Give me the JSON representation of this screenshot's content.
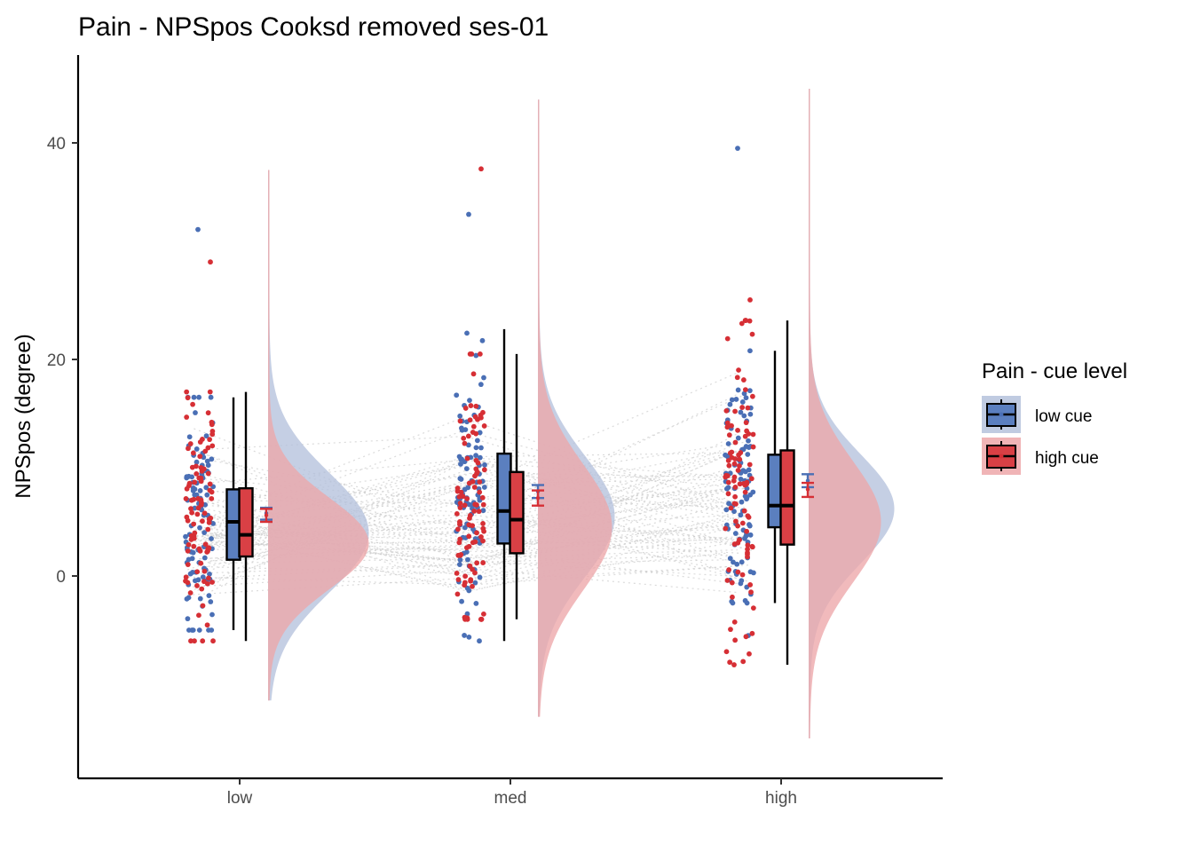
{
  "chart_data": {
    "type": "raincloud",
    "title": "Pain  - NPSpos Cooksd removed  ses-01",
    "xlabel": "",
    "ylabel": "NPSpos (degree)",
    "categories": [
      "low",
      "med",
      "high"
    ],
    "y_ticks": [
      0,
      20,
      40
    ],
    "ylim": [
      -18,
      47
    ],
    "grid": false,
    "legend": {
      "title": "Pain  - cue level",
      "position": "right",
      "entries": [
        "low cue",
        "high cue"
      ]
    },
    "colors": {
      "low cue": "#4a6fb5",
      "high cue": "#d62f35",
      "low cue fill": "#5b7fbf",
      "high cue fill": "#d94045",
      "density low cue": "#b5c2dc",
      "density high cue": "#eda7a9",
      "connecting lines": "#cccccc"
    },
    "series": [
      {
        "name": "low cue",
        "box": [
          {
            "category": "low",
            "whisker_low": -5,
            "q1": 1.5,
            "median": 5,
            "q3": 8,
            "whisker_high": 16.5
          },
          {
            "category": "med",
            "whisker_low": -6,
            "q1": 3,
            "median": 6,
            "q3": 11.3,
            "whisker_high": 22.8
          },
          {
            "category": "high",
            "whisker_low": -2.5,
            "q1": 4.5,
            "median": 6.5,
            "q3": 11.2,
            "whisker_high": 20.8
          }
        ],
        "mean_ci": [
          {
            "category": "low",
            "mean": 5.8,
            "low": 5.2,
            "high": 6.3
          },
          {
            "category": "med",
            "mean": 7.8,
            "low": 7.2,
            "high": 8.4
          },
          {
            "category": "high",
            "mean": 8.8,
            "low": 8.2,
            "high": 9.4
          }
        ],
        "density_peak": [
          {
            "category": "low",
            "y": 4.0
          },
          {
            "category": "med",
            "y": 5.5
          },
          {
            "category": "high",
            "y": 6.2
          }
        ],
        "extreme_points": [
          {
            "category": "low",
            "max": 32,
            "min": -5
          },
          {
            "category": "med",
            "max": 33.4,
            "min": -6
          },
          {
            "category": "high",
            "max": 39.5,
            "min": -5.5
          }
        ]
      },
      {
        "name": "high cue",
        "box": [
          {
            "category": "low",
            "whisker_low": -6,
            "q1": 1.8,
            "median": 3.8,
            "q3": 8.1,
            "whisker_high": 17
          },
          {
            "category": "med",
            "whisker_low": -4,
            "q1": 2.1,
            "median": 5.2,
            "q3": 9.6,
            "whisker_high": 20.5
          },
          {
            "category": "high",
            "whisker_low": -8.2,
            "q1": 2.9,
            "median": 6.5,
            "q3": 11.6,
            "whisker_high": 23.6
          }
        ],
        "mean_ci": [
          {
            "category": "low",
            "mean": 5.6,
            "low": 5.0,
            "high": 6.2
          },
          {
            "category": "med",
            "mean": 7.2,
            "low": 6.5,
            "high": 7.9
          },
          {
            "category": "high",
            "mean": 8.0,
            "low": 7.3,
            "high": 8.6
          }
        ],
        "density_peak": [
          {
            "category": "low",
            "y": 3.0
          },
          {
            "category": "med",
            "y": 4.5
          },
          {
            "category": "high",
            "y": 5.0
          }
        ],
        "extreme_points": [
          {
            "category": "low",
            "max": 29,
            "min": -6
          },
          {
            "category": "med",
            "max": 37.6,
            "min": -4
          },
          {
            "category": "high",
            "max": 25.5,
            "min": -8.2
          }
        ]
      }
    ]
  }
}
